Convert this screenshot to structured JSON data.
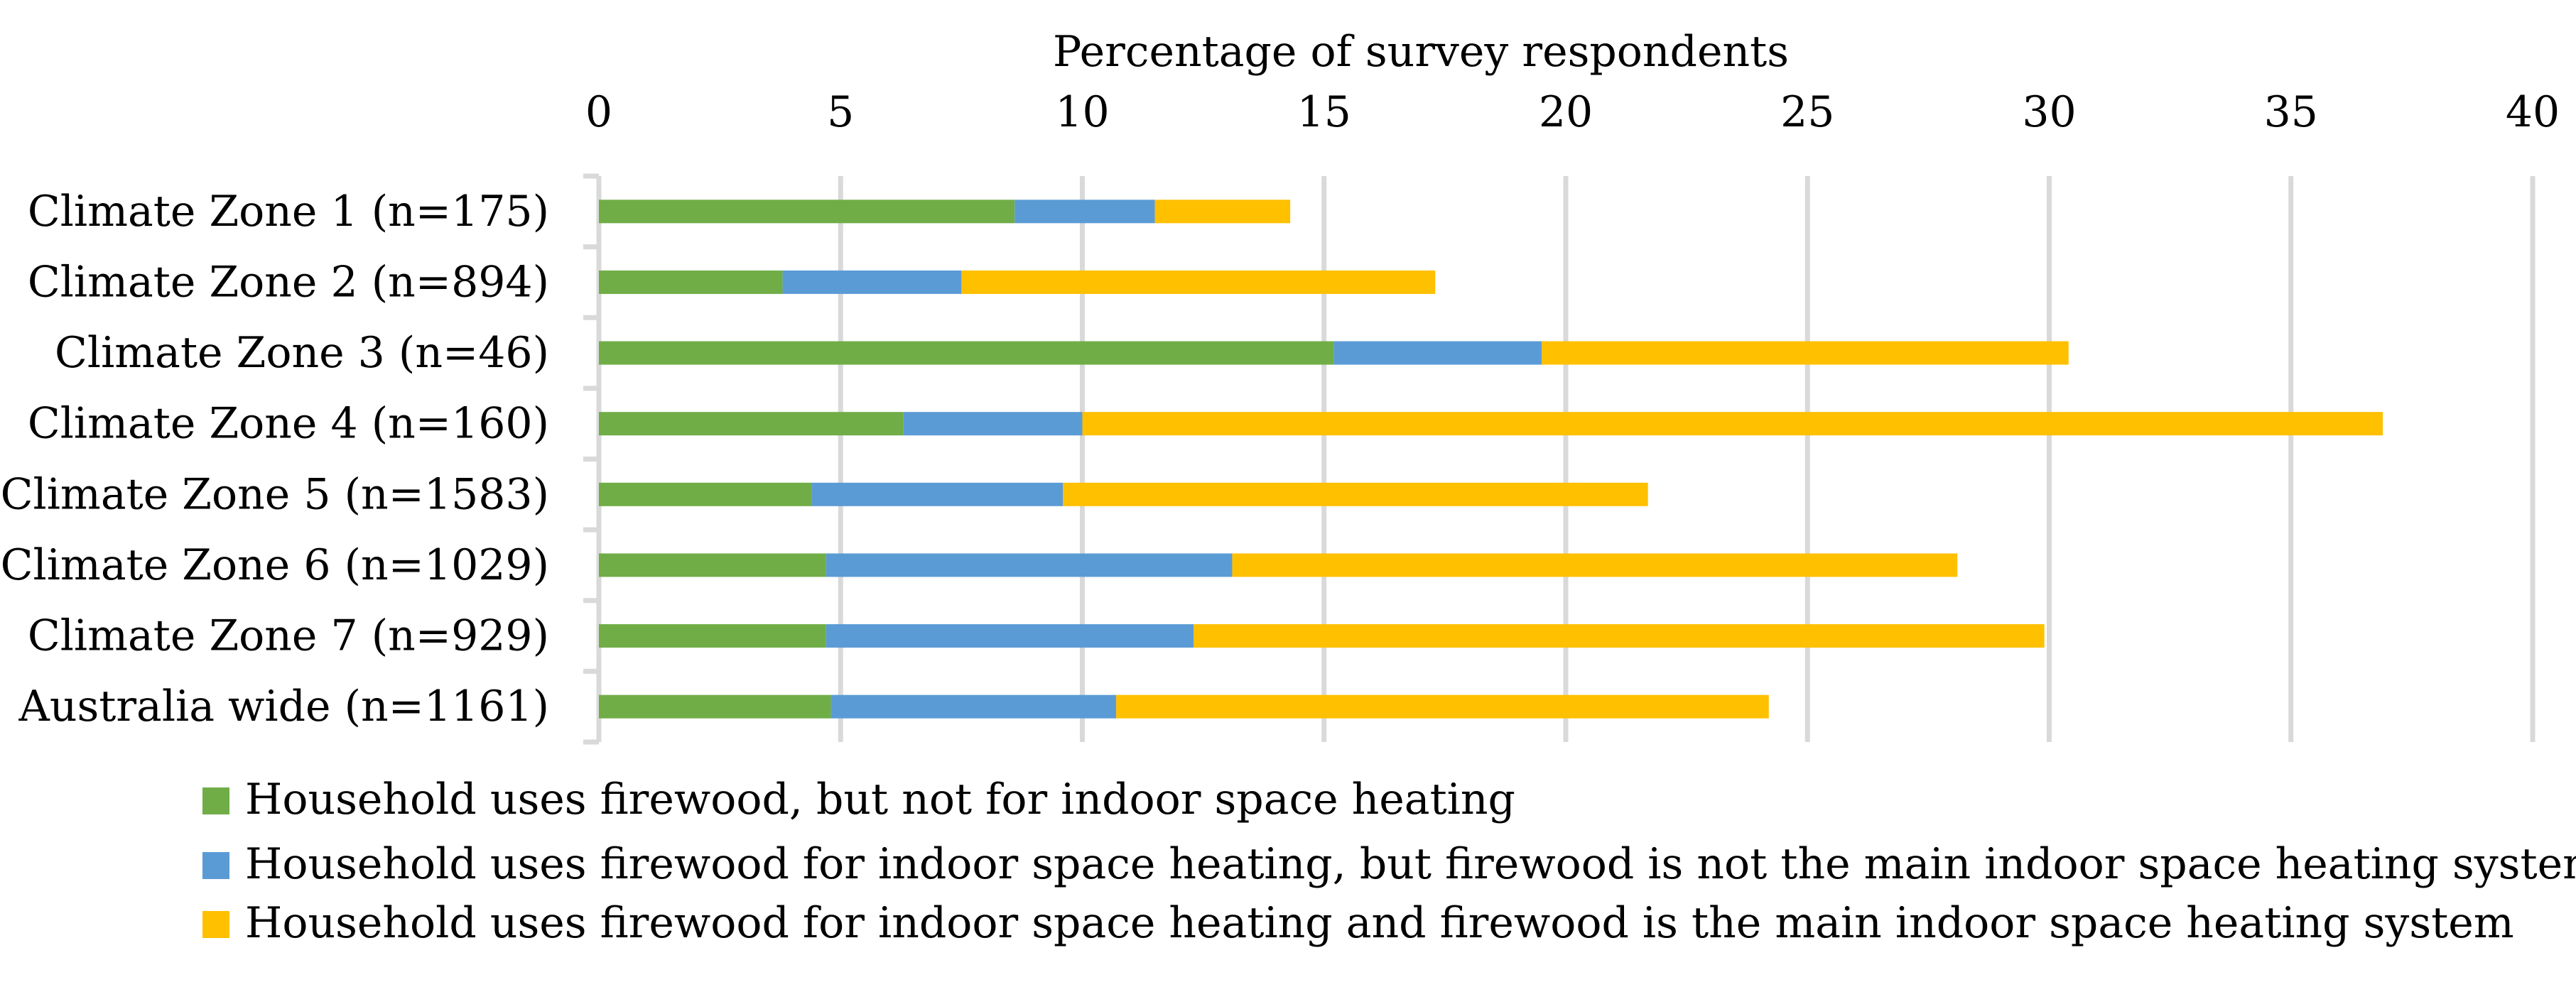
{
  "chart_data": {
    "type": "bar",
    "orientation": "horizontal",
    "stacked": true,
    "xlabel": "Percentage of survey respondents",
    "xlim": [
      0,
      40
    ],
    "xticks": [
      0,
      5,
      10,
      15,
      20,
      25,
      30,
      35,
      40
    ],
    "xtick_labels": [
      "0",
      "5",
      "10",
      "15",
      "20",
      "25",
      "30",
      "35",
      "40"
    ],
    "x_axis_position": "top",
    "grid": true,
    "legend_position": "bottom-left",
    "categories": [
      "Climate Zone 1 (n=175)",
      "Climate Zone 2 (n=894)",
      "Climate Zone 3 (n=46)",
      "Climate Zone 4 (n=160)",
      "Climate Zone 5 (n=1583)",
      "Climate Zone 6 (n=1029)",
      "Climate Zone 7 (n=929)",
      "Australia wide (n=1161)"
    ],
    "series": [
      {
        "name": "Household uses firewood, but not for indoor space heating",
        "color": "#70ad47",
        "values": [
          8.6,
          3.8,
          15.2,
          6.3,
          4.4,
          4.7,
          4.7,
          4.8
        ]
      },
      {
        "name": "Household uses firewood for indoor space heating, but firewood is not the main indoor space heating system",
        "color": "#5b9bd5",
        "values": [
          2.9,
          3.7,
          4.3,
          3.7,
          5.2,
          8.4,
          7.6,
          5.9
        ]
      },
      {
        "name": "Household uses firewood for indoor space heating and firewood is the main indoor space heating system",
        "color": "#ffc000",
        "values": [
          2.8,
          9.8,
          10.9,
          26.9,
          12.1,
          15.0,
          17.6,
          13.5
        ]
      }
    ]
  }
}
